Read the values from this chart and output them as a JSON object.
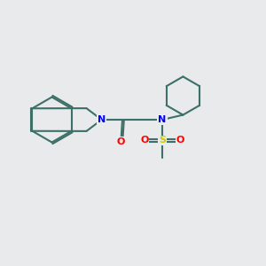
{
  "bg_color": "#e8eaeb",
  "bond_color": "#3d7068",
  "N_color": "#0000ff",
  "O_color": "#ff0000",
  "S_color": "#cccc00",
  "lw": 1.5,
  "dbo": 0.06,
  "xlim": [
    0,
    10
  ],
  "ylim": [
    0,
    10
  ]
}
